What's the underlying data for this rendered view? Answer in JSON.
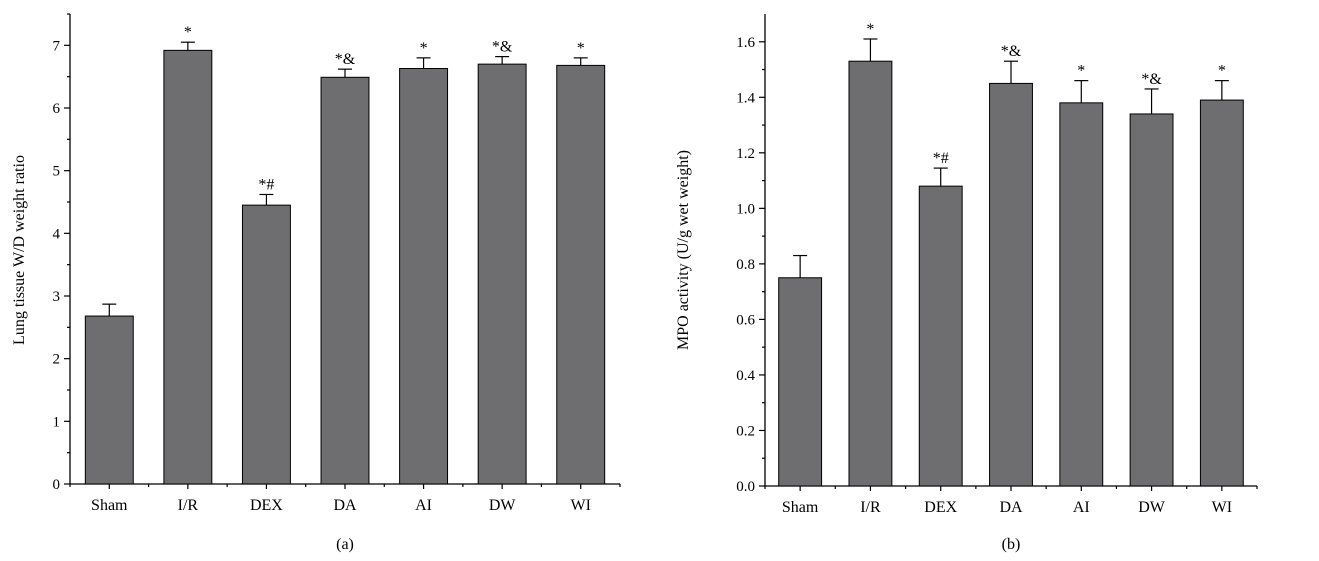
{
  "chart_data": [
    {
      "type": "bar",
      "panel_label": "(a)",
      "ylabel": "Lung tissue W/D weight ratio",
      "xlabel": "",
      "categories": [
        "Sham",
        "I/R",
        "DEX",
        "DA",
        "AI",
        "DW",
        "WI"
      ],
      "values": [
        2.68,
        6.92,
        4.45,
        6.49,
        6.63,
        6.7,
        6.68
      ],
      "errors": [
        0.19,
        0.13,
        0.17,
        0.13,
        0.17,
        0.12,
        0.12
      ],
      "annotations": [
        "",
        "*",
        "*#",
        "*&",
        "*",
        "*&",
        "*"
      ],
      "ylim": [
        0,
        7.5
      ],
      "yticks": [
        0,
        1,
        2,
        3,
        4,
        5,
        6,
        7
      ],
      "ytick_labels": [
        "0",
        "1",
        "2",
        "3",
        "4",
        "5",
        "6",
        "7"
      ],
      "bar_color": "#6e6e70",
      "grid": false
    },
    {
      "type": "bar",
      "panel_label": "(b)",
      "ylabel": "MPO activity (U/g wet weight)",
      "xlabel": "",
      "categories": [
        "Sham",
        "I/R",
        "DEX",
        "DA",
        "AI",
        "DW",
        "WI"
      ],
      "values": [
        0.75,
        1.53,
        1.08,
        1.45,
        1.38,
        1.34,
        1.39
      ],
      "errors": [
        0.08,
        0.08,
        0.065,
        0.08,
        0.08,
        0.09,
        0.07
      ],
      "annotations": [
        "",
        "*",
        "*#",
        "*&",
        "*",
        "*&",
        "*"
      ],
      "ylim": [
        0,
        1.7
      ],
      "yticks": [
        0,
        0.2,
        0.4,
        0.6,
        0.8,
        1.0,
        1.2,
        1.4,
        1.6
      ],
      "ytick_labels": [
        "0.0",
        "0.2",
        "0.4",
        "0.6",
        "0.8",
        "1.0",
        "1.2",
        "1.4",
        "1.6"
      ],
      "bar_color": "#6e6e70",
      "grid": false
    }
  ]
}
